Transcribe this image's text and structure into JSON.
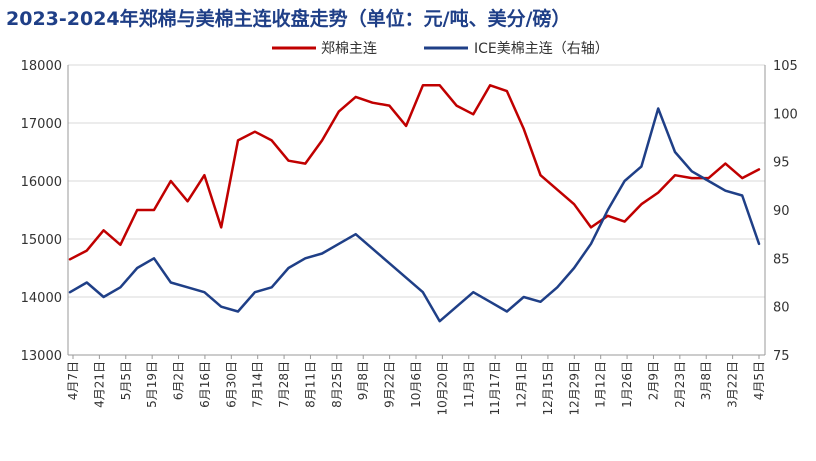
{
  "chart_data": {
    "type": "line",
    "title": "2023-2024年郑棉与美棉主连收盘走势（单位：元/吨、美分/磅）",
    "legend": [
      "郑棉主连",
      "ICE美棉主连（右轴）"
    ],
    "legend_position": "top-center",
    "x_tick_labels": [
      "4月7日",
      "4月21日",
      "5月5日",
      "5月19日",
      "6月2日",
      "6月16日",
      "6月30日",
      "7月14日",
      "7月28日",
      "8月11日",
      "8月25日",
      "9月8日",
      "9月22日",
      "10月6日",
      "10月20日",
      "11月3日",
      "11月17日",
      "12月1日",
      "12月15日",
      "12月29日",
      "1月12日",
      "1月26日",
      "2月9日",
      "2月23日",
      "3月8日",
      "3月22日",
      "4月5日"
    ],
    "ylim": [
      13000,
      18000
    ],
    "y_ticks": [
      13000,
      14000,
      15000,
      16000,
      17000,
      18000
    ],
    "y2lim": [
      75,
      105
    ],
    "y2_ticks": [
      75,
      80,
      85,
      90,
      95,
      100,
      105
    ],
    "grid": "horizontal",
    "series": [
      {
        "name": "郑棉主连",
        "axis": "left",
        "color": "#c00000",
        "values": [
          14650,
          14800,
          15150,
          14900,
          15500,
          15500,
          16000,
          15650,
          16100,
          15200,
          16700,
          16850,
          16700,
          16350,
          16300,
          16700,
          17200,
          17450,
          17350,
          17300,
          16950,
          17650,
          17650,
          17300,
          17150,
          17650,
          17550,
          16900,
          16100,
          15850,
          15600,
          15200,
          15400,
          15300,
          15600,
          15800,
          16100,
          16050,
          16050,
          16300,
          16050,
          16200
        ]
      },
      {
        "name": "ICE美棉主连（右轴）",
        "axis": "right",
        "color": "#1f3f87",
        "values": [
          81.5,
          82.5,
          81.0,
          82.0,
          84.0,
          85.0,
          82.5,
          82.0,
          81.5,
          80.0,
          79.5,
          81.5,
          82.0,
          84.0,
          85.0,
          85.5,
          86.5,
          87.5,
          86.0,
          84.5,
          83.0,
          81.5,
          78.5,
          80.0,
          81.5,
          80.5,
          79.5,
          81.0,
          80.5,
          82.0,
          84.0,
          86.5,
          90.0,
          93.0,
          94.5,
          100.5,
          96.0,
          94.0,
          93.0,
          92.0,
          91.5,
          86.5
        ]
      }
    ]
  }
}
